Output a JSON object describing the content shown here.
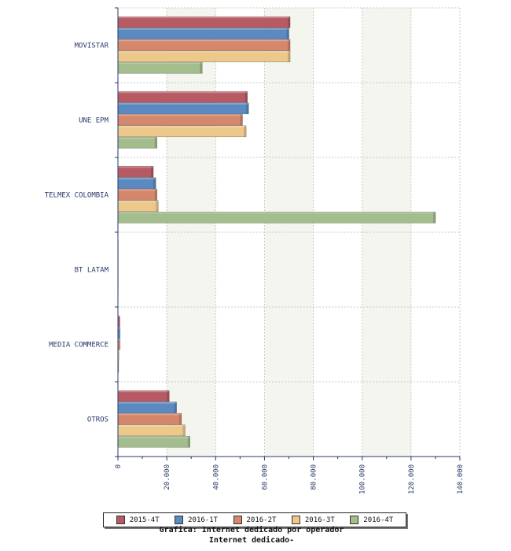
{
  "chart_data": {
    "type": "bar",
    "orientation": "horizontal",
    "categories": [
      "MOVISTAR",
      "UNE EPM",
      "TELMEX COLOMBIA",
      "BT LATAM",
      "MEDIA COMMERCE",
      "OTROS"
    ],
    "series": [
      {
        "name": "2015-4T",
        "color": "#b85a63",
        "values": [
          70500,
          53000,
          14500,
          150,
          800,
          21000
        ]
      },
      {
        "name": "2016-1T",
        "color": "#5b8ac0",
        "values": [
          70000,
          53500,
          15500,
          150,
          900,
          24000
        ]
      },
      {
        "name": "2016-2T",
        "color": "#d5876c",
        "values": [
          70500,
          51000,
          16000,
          150,
          900,
          26000
        ]
      },
      {
        "name": "2016-3T",
        "color": "#ecc98a",
        "values": [
          70500,
          52500,
          16500,
          150,
          400,
          27500
        ]
      },
      {
        "name": "2016-4T",
        "color": "#a3bd8c",
        "values": [
          34500,
          16000,
          130000,
          100,
          300,
          29500
        ]
      }
    ],
    "xlim": [
      0,
      140000
    ],
    "ticks": [
      "0",
      "20.000",
      "40.000",
      "60.000",
      "80.000",
      "100.000",
      "120.000",
      "140.000"
    ],
    "legend_position": "bottom",
    "grid": true
  },
  "caption": {
    "line1": "Grafica: Internet dedicado por operador",
    "line2": "Internet dedicado-"
  }
}
